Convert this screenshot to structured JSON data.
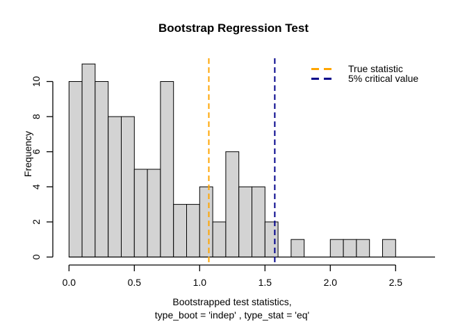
{
  "chart_data": {
    "type": "bar",
    "subtype": "histogram",
    "title": "Bootstrap Regression Test",
    "xlabel": [
      "Bootstrapped test statistics,",
      "type_boot = 'indep' , type_stat = 'eq'"
    ],
    "ylabel": "Frequency",
    "bins": {
      "start": 0.0,
      "width": 0.1,
      "frequencies": [
        10,
        11,
        10,
        8,
        8,
        5,
        5,
        10,
        3,
        3,
        4,
        2,
        6,
        4,
        4,
        2,
        0,
        1,
        0,
        0,
        1,
        1,
        1,
        0,
        1
      ]
    },
    "xlim": [
      0.0,
      2.5
    ],
    "ylim": [
      0,
      11
    ],
    "x_ticks": {
      "values": [
        0.0,
        0.5,
        1.0,
        1.5,
        2.0,
        2.5
      ],
      "labels": [
        "0.0",
        "0.5",
        "1.0",
        "1.5",
        "2.0",
        "2.5"
      ]
    },
    "y_ticks": {
      "values": [
        0,
        2,
        4,
        6,
        8,
        10
      ],
      "labels": [
        "0",
        "2",
        "4",
        "6",
        "8",
        "10"
      ]
    },
    "grid": false,
    "bar_fill": "#d3d3d3",
    "bar_stroke": "#000000",
    "axis_color": "#000000",
    "vlines": [
      {
        "value": 1.07,
        "color": "#FFA500",
        "style": "dashed",
        "label": "True statistic"
      },
      {
        "value": 1.575,
        "color": "#00008B",
        "style": "dashed",
        "label": "5% critical value"
      }
    ],
    "legend": {
      "position": "top-right",
      "entries": [
        {
          "label": "True statistic",
          "color": "#FFA500",
          "line_style": "dashed"
        },
        {
          "label": "5% critical value",
          "color": "#00008B",
          "line_style": "dashed"
        }
      ]
    }
  }
}
